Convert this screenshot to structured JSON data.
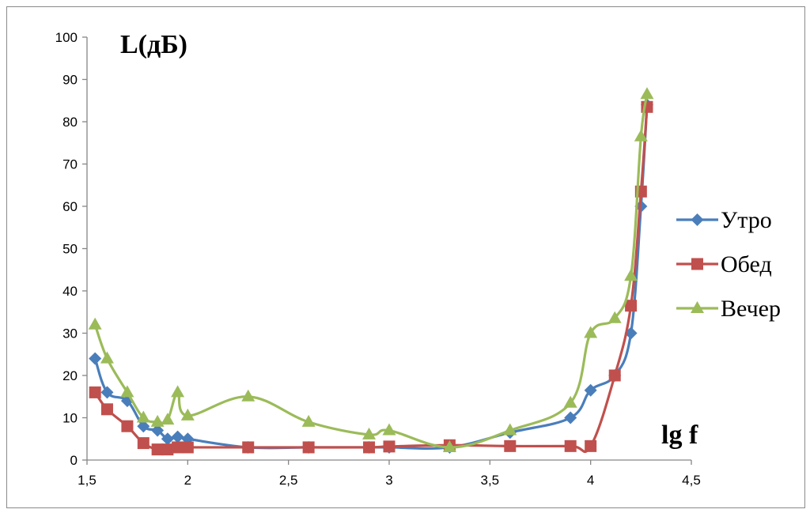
{
  "chart_data": {
    "type": "line",
    "smooth": true,
    "ylabel": "L(дБ)",
    "xlabel": "lg f",
    "xlim": [
      1.5,
      4.5
    ],
    "ylim": [
      0,
      100
    ],
    "x_ticks": [
      "1,5",
      "2",
      "2,5",
      "3",
      "3,5",
      "4",
      "4,5"
    ],
    "x_tick_values": [
      1.5,
      2,
      2.5,
      3,
      3.5,
      4,
      4.5
    ],
    "y_ticks": [
      "0",
      "10",
      "20",
      "30",
      "40",
      "50",
      "60",
      "70",
      "80",
      "90",
      "100"
    ],
    "y_tick_values": [
      0,
      10,
      20,
      30,
      40,
      50,
      60,
      70,
      80,
      90,
      100
    ],
    "grid": false,
    "legend_position": "right",
    "series": [
      {
        "name": "Утро",
        "color": "#4a7ebb",
        "marker": "diamond",
        "points": [
          [
            1.54,
            24
          ],
          [
            1.6,
            16
          ],
          [
            1.7,
            14
          ],
          [
            1.78,
            8
          ],
          [
            1.85,
            7
          ],
          [
            1.9,
            5
          ],
          [
            1.95,
            5.5
          ],
          [
            2.0,
            5
          ],
          [
            2.3,
            3
          ],
          [
            2.6,
            3
          ],
          [
            2.9,
            3
          ],
          [
            3.0,
            3
          ],
          [
            3.3,
            3
          ],
          [
            3.6,
            6.5
          ],
          [
            3.9,
            10
          ],
          [
            4.0,
            16.5
          ],
          [
            4.12,
            20
          ],
          [
            4.2,
            30
          ],
          [
            4.25,
            60
          ],
          [
            4.28,
            84
          ]
        ]
      },
      {
        "name": "Обед",
        "color": "#c0504d",
        "marker": "square",
        "points": [
          [
            1.54,
            16
          ],
          [
            1.6,
            12
          ],
          [
            1.7,
            8
          ],
          [
            1.78,
            4
          ],
          [
            1.85,
            2.5
          ],
          [
            1.9,
            2.5
          ],
          [
            1.95,
            3
          ],
          [
            2.0,
            3
          ],
          [
            2.3,
            3
          ],
          [
            2.6,
            3
          ],
          [
            2.9,
            3
          ],
          [
            3.0,
            3.2
          ],
          [
            3.3,
            3.5
          ],
          [
            3.6,
            3.3
          ],
          [
            3.9,
            3.3
          ],
          [
            4.0,
            3.3
          ],
          [
            4.12,
            20
          ],
          [
            4.2,
            36.5
          ],
          [
            4.25,
            63.5
          ],
          [
            4.28,
            83.5
          ]
        ]
      },
      {
        "name": "Вечер",
        "color": "#9bbb59",
        "marker": "triangle",
        "points": [
          [
            1.54,
            32
          ],
          [
            1.6,
            24
          ],
          [
            1.7,
            16
          ],
          [
            1.78,
            10
          ],
          [
            1.85,
            9
          ],
          [
            1.9,
            9.5
          ],
          [
            1.95,
            16
          ],
          [
            2.0,
            10.5
          ],
          [
            2.3,
            15
          ],
          [
            2.6,
            9
          ],
          [
            2.9,
            6
          ],
          [
            3.0,
            7
          ],
          [
            3.3,
            3
          ],
          [
            3.6,
            7
          ],
          [
            3.9,
            13.5
          ],
          [
            4.0,
            30
          ],
          [
            4.12,
            33.5
          ],
          [
            4.2,
            43.5
          ],
          [
            4.25,
            76.5
          ],
          [
            4.28,
            86.5
          ]
        ]
      }
    ]
  }
}
